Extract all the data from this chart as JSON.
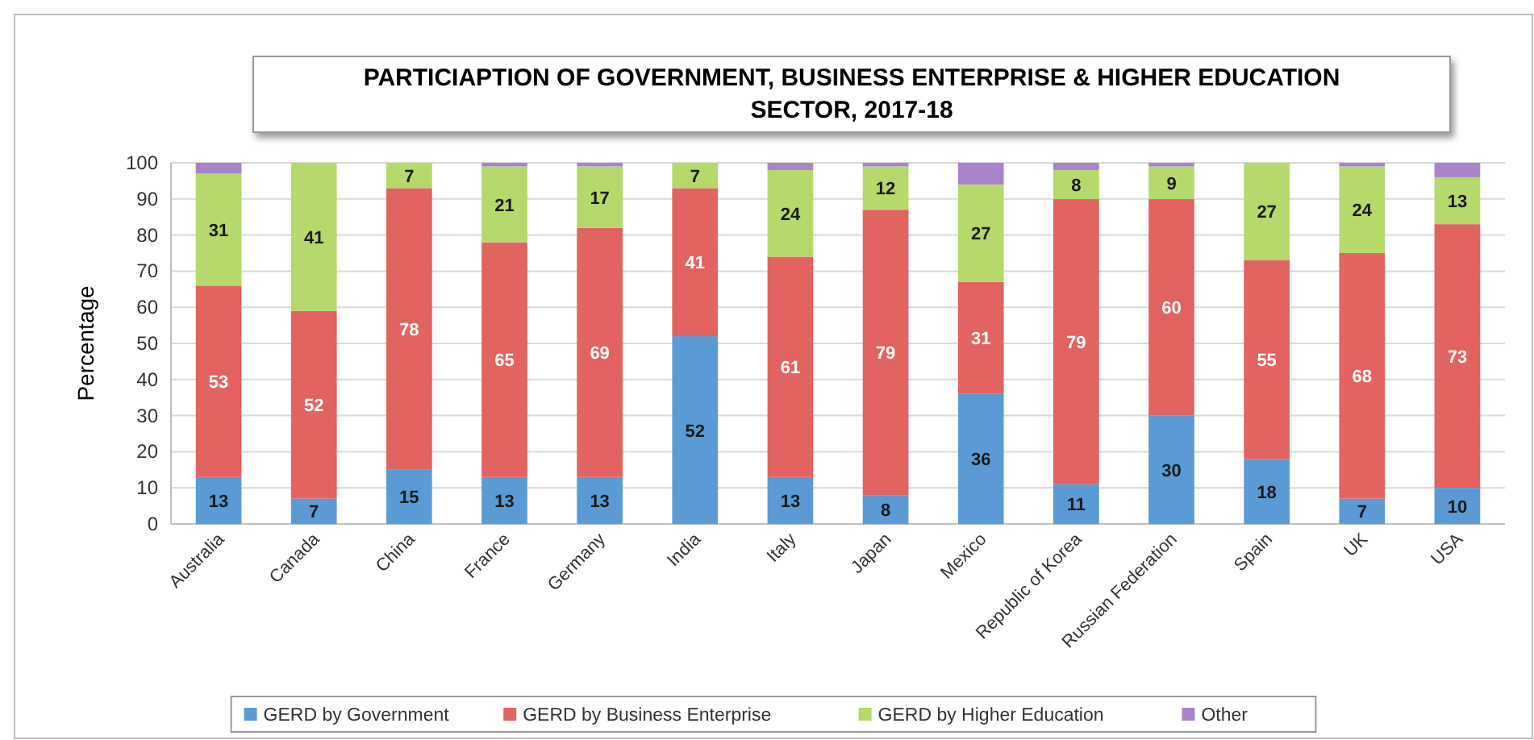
{
  "chart_data": {
    "type": "bar",
    "stacked": true,
    "title": "PARTICIAPTION OF GOVERNMENT, BUSINESS ENTERPRISE & HIGHER EDUCATION SECTOR, 2017-18",
    "ylabel": "Percentage",
    "categories": [
      "Australia",
      "Canada",
      "China",
      "France",
      "Germany",
      "India",
      "Italy",
      "Japan",
      "Mexico",
      "Republic of Korea",
      "Russian Federation",
      "Spain",
      "UK",
      "USA"
    ],
    "series": [
      {
        "name": "GERD by Government",
        "color": "#5b9bd5",
        "values": [
          13,
          7,
          15,
          13,
          13,
          52,
          13,
          8,
          36,
          11,
          30,
          18,
          7,
          10
        ],
        "value_labels": [
          "13",
          "7",
          "15",
          "13",
          "13",
          "52",
          "13",
          "8",
          "36",
          "11",
          "30",
          "18",
          "7",
          "10"
        ]
      },
      {
        "name": "GERD by Business Enterprise",
        "color": "#e2635f",
        "values": [
          53,
          52,
          78,
          65,
          69,
          41,
          61,
          79,
          31,
          79,
          60,
          55,
          68,
          73
        ],
        "value_labels": [
          "53",
          "52",
          "78",
          "65",
          "69",
          "41",
          "61",
          "79",
          "31",
          "79",
          "60",
          "55",
          "68",
          "73"
        ]
      },
      {
        "name": "GERD by Higher Education",
        "color": "#b5d96a",
        "values": [
          31,
          41,
          7,
          21,
          17,
          7,
          24,
          12,
          27,
          8,
          9,
          27,
          24,
          13
        ],
        "value_labels": [
          "31",
          "41",
          "7",
          "21",
          "17",
          "7",
          "24",
          "12",
          "27",
          "8",
          "9",
          "27",
          "24",
          "13"
        ]
      },
      {
        "name": "Other",
        "color": "#a983c9",
        "values": [
          3,
          0,
          0,
          1,
          1,
          0,
          2,
          1,
          6,
          2,
          1,
          0,
          1,
          4
        ],
        "value_labels": [
          null,
          null,
          null,
          null,
          null,
          null,
          null,
          null,
          null,
          null,
          null,
          null,
          null,
          null
        ]
      }
    ],
    "ylim": [
      0,
      100
    ],
    "yticks": [
      0,
      10,
      20,
      30,
      40,
      50,
      60,
      70,
      80,
      90,
      100
    ],
    "grid": "y",
    "legend": "bottom"
  }
}
